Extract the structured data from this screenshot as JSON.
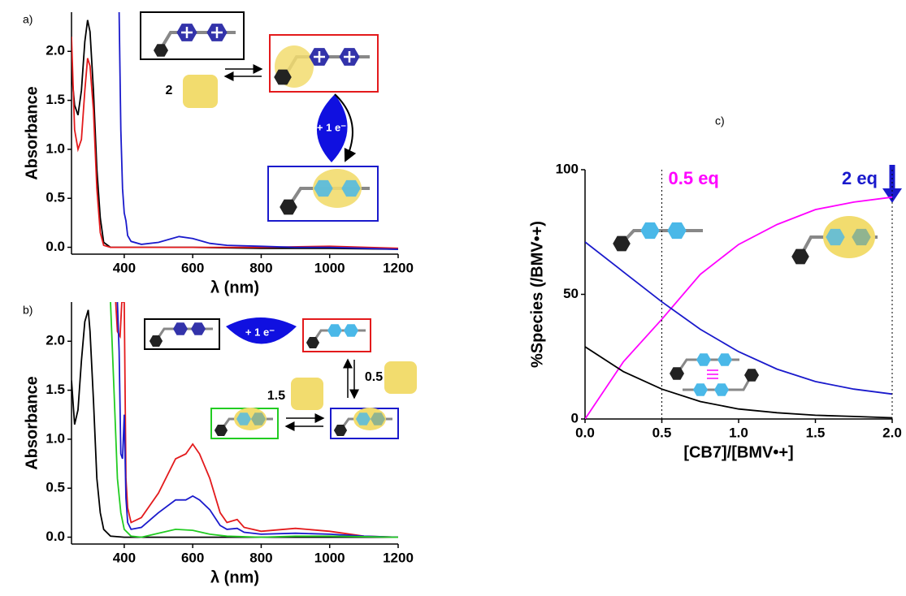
{
  "chart_data": [
    {
      "type": "line",
      "panel_label": "a)",
      "xlabel": "λ (nm)",
      "ylabel": "Absorbance",
      "xlim": [
        246,
        1200
      ],
      "ylim": [
        -0.07,
        2.4
      ],
      "xticks": [
        400,
        600,
        800,
        1000,
        1200
      ],
      "yticks": [
        {
          "value": 0,
          "label": "0.0"
        },
        {
          "value": 0.5,
          "label": "0.5"
        },
        {
          "value": 1,
          "label": "1.0"
        },
        {
          "value": 1.5,
          "label": "1.5"
        },
        {
          "value": 2,
          "label": "2.0"
        }
      ],
      "series": [
        {
          "color": "#000000",
          "x": [
            246,
            255,
            265,
            275,
            285,
            293,
            300,
            310,
            320,
            330,
            340,
            360,
            400,
            600,
            800,
            1000,
            1200
          ],
          "values": [
            1.8,
            1.45,
            1.35,
            1.6,
            2.1,
            2.32,
            2.2,
            1.6,
            0.8,
            0.3,
            0.05,
            0,
            0,
            0,
            -0.01,
            -0.01,
            -0.02
          ]
        },
        {
          "color": "#e31a1c",
          "x": [
            246,
            255,
            265,
            275,
            285,
            293,
            300,
            310,
            320,
            330,
            340,
            360,
            400,
            600,
            800,
            1000,
            1200
          ],
          "values": [
            2.15,
            1.2,
            1.0,
            1.1,
            1.6,
            1.93,
            1.85,
            1.4,
            0.6,
            0.15,
            0.02,
            0,
            0,
            0,
            0,
            0.01,
            -0.01
          ]
        },
        {
          "color": "#1a1acc",
          "x": [
            385,
            390,
            395,
            400,
            405,
            410,
            420,
            450,
            500,
            560,
            600,
            650,
            700,
            800,
            900,
            1000,
            1100,
            1200
          ],
          "values": [
            2.4,
            1.2,
            0.6,
            0.35,
            0.27,
            0.12,
            0.06,
            0.03,
            0.05,
            0.11,
            0.09,
            0.04,
            0.02,
            0.01,
            0,
            0,
            -0.01,
            -0.02
          ]
        }
      ],
      "annotations": [
        "2",
        "+ 1 e⁻"
      ]
    },
    {
      "type": "line",
      "panel_label": "b)",
      "xlabel": "λ (nm)",
      "ylabel": "Absorbance",
      "xlim": [
        246,
        1200
      ],
      "ylim": [
        -0.07,
        2.4
      ],
      "xticks": [
        400,
        600,
        800,
        1000,
        1200
      ],
      "yticks": [
        {
          "value": 0,
          "label": "0.0"
        },
        {
          "value": 0.5,
          "label": "0.5"
        },
        {
          "value": 1,
          "label": "1.0"
        },
        {
          "value": 1.5,
          "label": "1.5"
        },
        {
          "value": 2,
          "label": "2.0"
        }
      ],
      "series": [
        {
          "color": "#000000",
          "x": [
            246,
            255,
            265,
            275,
            285,
            295,
            300,
            310,
            320,
            330,
            340,
            360,
            400,
            600,
            1200
          ],
          "values": [
            1.6,
            1.15,
            1.3,
            1.8,
            2.2,
            2.32,
            2.1,
            1.4,
            0.6,
            0.25,
            0.08,
            0.01,
            0,
            0,
            0
          ]
        },
        {
          "color": "#e31a1c",
          "x": [
            375,
            380,
            388,
            393,
            400,
            405,
            410,
            420,
            450,
            500,
            550,
            580,
            600,
            620,
            650,
            680,
            700,
            730,
            750,
            800,
            900,
            1000,
            1100,
            1200
          ],
          "values": [
            2.4,
            2.1,
            2.05,
            2.4,
            2.4,
            0.6,
            0.3,
            0.15,
            0.2,
            0.45,
            0.8,
            0.85,
            0.95,
            0.85,
            0.6,
            0.25,
            0.15,
            0.18,
            0.1,
            0.06,
            0.09,
            0.06,
            0.01,
            0
          ]
        },
        {
          "color": "#1a1acc",
          "x": [
            380,
            385,
            390,
            395,
            400,
            405,
            410,
            420,
            450,
            500,
            550,
            580,
            600,
            620,
            650,
            680,
            700,
            730,
            750,
            800,
            900,
            1000,
            1100,
            1200
          ],
          "values": [
            2.4,
            1.9,
            0.85,
            0.8,
            1.25,
            0.4,
            0.15,
            0.08,
            0.1,
            0.25,
            0.38,
            0.38,
            0.42,
            0.38,
            0.28,
            0.12,
            0.08,
            0.09,
            0.05,
            0.03,
            0.04,
            0.03,
            0.01,
            0
          ]
        },
        {
          "color": "#22cc22",
          "x": [
            360,
            370,
            380,
            390,
            400,
            420,
            450,
            500,
            550,
            600,
            650,
            700,
            800,
            900,
            1000,
            1200
          ],
          "values": [
            2.4,
            1.5,
            0.6,
            0.25,
            0.08,
            0.01,
            0,
            0.04,
            0.08,
            0.07,
            0.03,
            0.01,
            0,
            0.01,
            0.01,
            0
          ]
        }
      ],
      "annotations": [
        "+ 1 e⁻",
        "1.5",
        "0.5"
      ]
    },
    {
      "type": "line",
      "panel_label": "c)",
      "xlabel": "[CB7]/[BMV•+]",
      "ylabel": "%Species (/BMV•+)",
      "xlim": [
        0,
        2
      ],
      "ylim": [
        0,
        100
      ],
      "xticks": [
        {
          "value": 0,
          "label": "0.0"
        },
        {
          "value": 0.5,
          "label": "0.5"
        },
        {
          "value": 1,
          "label": "1.0"
        },
        {
          "value": 1.5,
          "label": "1.5"
        },
        {
          "value": 2,
          "label": "2.0"
        }
      ],
      "yticks": [
        0,
        50,
        100
      ],
      "series": [
        {
          "color": "#ff00ff",
          "x": [
            0,
            0.25,
            0.5,
            0.75,
            1,
            1.25,
            1.5,
            1.75,
            2
          ],
          "values": [
            0,
            23,
            40,
            58,
            70,
            78,
            84,
            87,
            89
          ]
        },
        {
          "color": "#1a1acc",
          "x": [
            0,
            0.25,
            0.5,
            0.75,
            1,
            1.25,
            1.5,
            1.75,
            2
          ],
          "values": [
            71,
            59,
            47,
            36,
            27,
            20,
            15,
            12,
            10
          ]
        },
        {
          "color": "#000000",
          "x": [
            0,
            0.25,
            0.5,
            0.75,
            1,
            1.25,
            1.5,
            1.75,
            2
          ],
          "values": [
            29,
            19,
            12,
            7,
            4,
            2.5,
            1.5,
            1,
            0.5
          ]
        }
      ],
      "annotations": [
        {
          "text": "0.5 eq",
          "x": 0.5,
          "color": "#ff00ff"
        },
        {
          "text": "2 eq",
          "x": 2,
          "color": "#1a1acc"
        }
      ]
    }
  ]
}
